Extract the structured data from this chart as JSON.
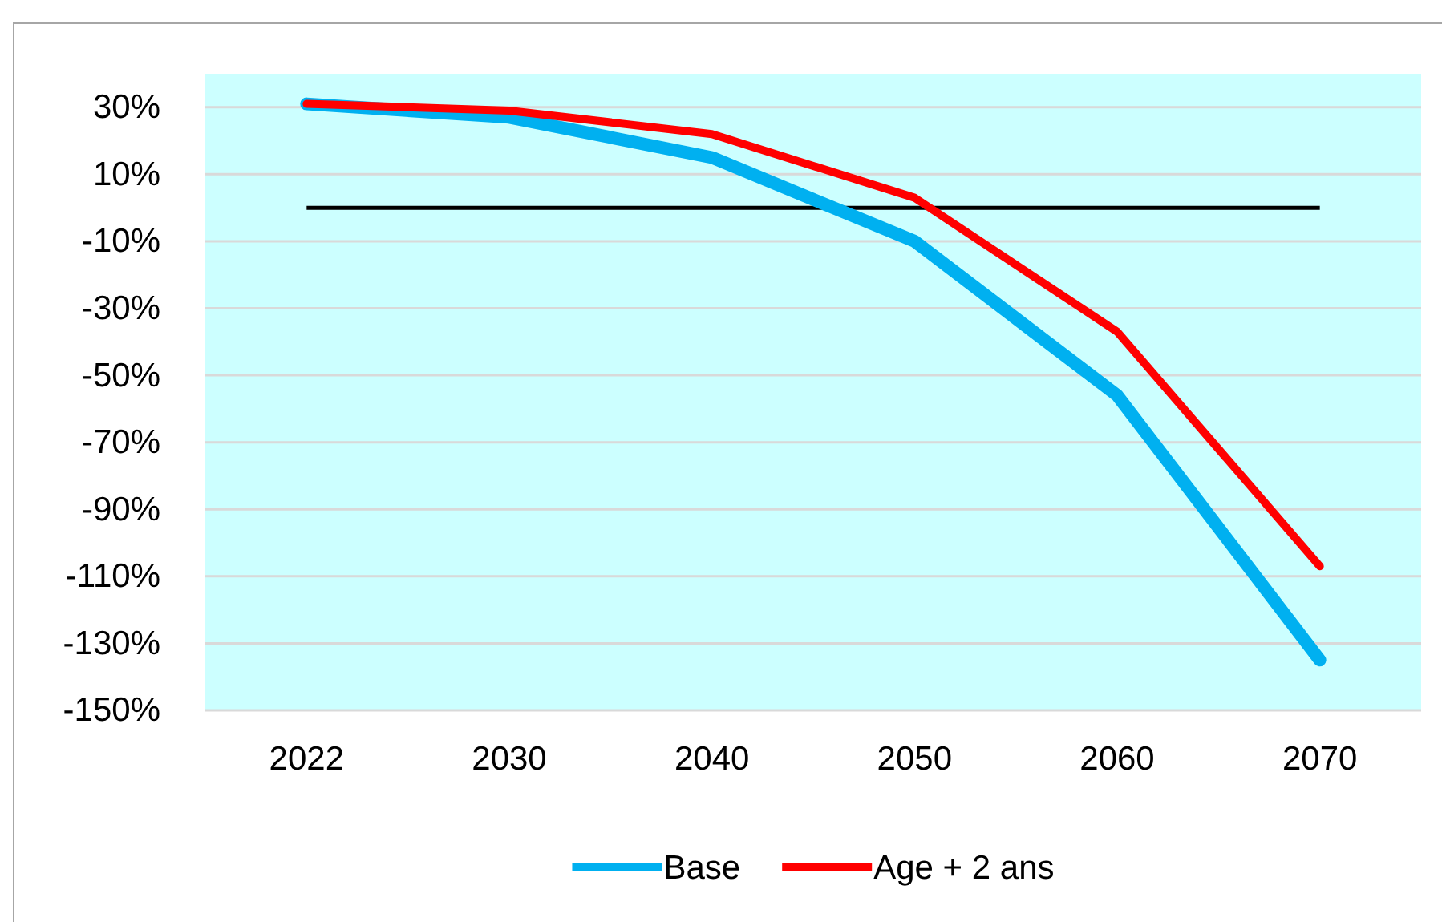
{
  "chart_data": {
    "type": "line",
    "categories": [
      "2022",
      "2030",
      "2040",
      "2050",
      "2060",
      "2070"
    ],
    "series": [
      {
        "name": "Base",
        "color": "#00b0f0",
        "values": [
          31,
          27,
          15,
          -10,
          -56,
          -135
        ]
      },
      {
        "name": "Age + 2 ans",
        "color": "#ff0000",
        "values": [
          31,
          29,
          22,
          3,
          -37,
          -107
        ]
      }
    ],
    "ylim": [
      -150,
      40
    ],
    "yticks": [
      {
        "value": -150,
        "label": "-150%"
      },
      {
        "value": -130,
        "label": "-130%"
      },
      {
        "value": -110,
        "label": "-110%"
      },
      {
        "value": -90,
        "label": "-90%"
      },
      {
        "value": -70,
        "label": "-70%"
      },
      {
        "value": -50,
        "label": "-50%"
      },
      {
        "value": -30,
        "label": "-30%"
      },
      {
        "value": -10,
        "label": "-10%"
      },
      {
        "value": 10,
        "label": "10%"
      },
      {
        "value": 30,
        "label": "30%"
      }
    ],
    "ref_lines": [
      {
        "axis": "y",
        "value": 0,
        "color": "#000000"
      }
    ],
    "grid": "y",
    "legend": "bottom",
    "line_style": "solid",
    "marker": "none"
  }
}
